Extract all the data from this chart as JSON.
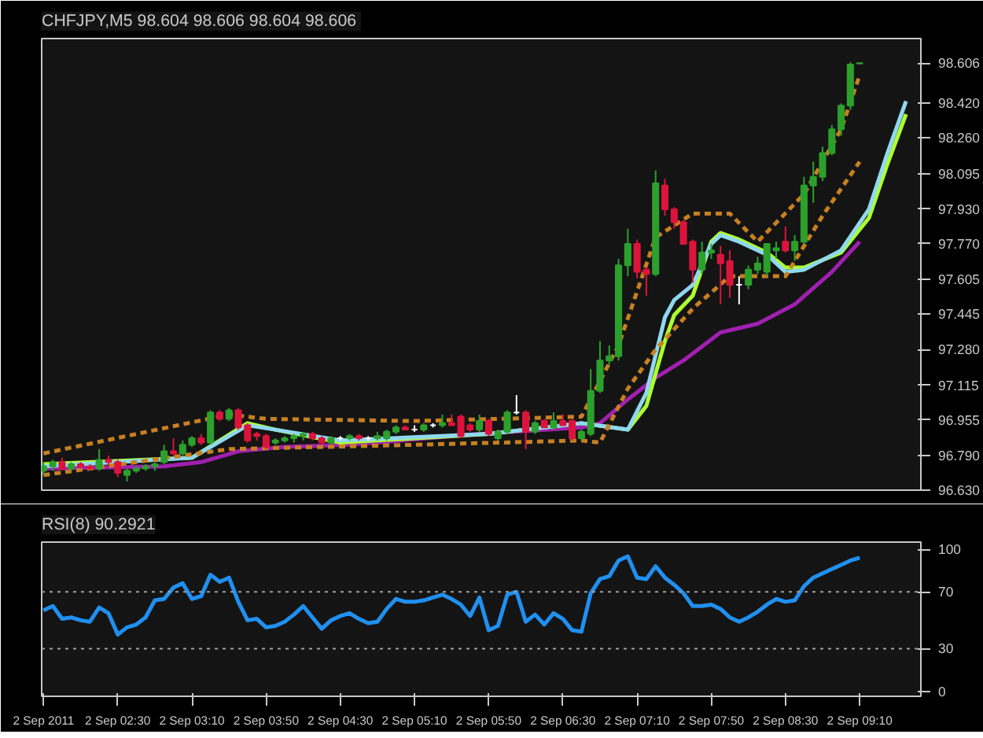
{
  "chart_data": [
    {
      "type": "candlestick",
      "title": "CHFJPY,M5  98.604 98.606 98.604 98.606",
      "x": [
        "2011-09-02T01:50",
        "2011-09-02T01:55",
        "2011-09-02T02:00",
        "2011-09-02T02:05",
        "2011-09-02T02:10",
        "2011-09-02T02:15",
        "2011-09-02T02:20",
        "2011-09-02T02:25",
        "2011-09-02T02:30",
        "2011-09-02T02:35",
        "2011-09-02T02:40",
        "2011-09-02T02:45",
        "2011-09-02T02:50",
        "2011-09-02T02:55",
        "2011-09-02T03:00",
        "2011-09-02T03:05",
        "2011-09-02T03:10",
        "2011-09-02T03:15",
        "2011-09-02T03:20",
        "2011-09-02T03:25",
        "2011-09-02T03:30",
        "2011-09-02T03:35",
        "2011-09-02T03:40",
        "2011-09-02T03:45",
        "2011-09-02T03:50",
        "2011-09-02T03:55",
        "2011-09-02T04:00",
        "2011-09-02T04:05",
        "2011-09-02T04:10",
        "2011-09-02T04:15",
        "2011-09-02T04:20",
        "2011-09-02T04:25",
        "2011-09-02T04:30",
        "2011-09-02T04:35",
        "2011-09-02T04:40",
        "2011-09-02T04:45",
        "2011-09-02T04:50",
        "2011-09-02T04:55",
        "2011-09-02T05:00",
        "2011-09-02T05:05",
        "2011-09-02T05:10",
        "2011-09-02T05:15",
        "2011-09-02T05:20",
        "2011-09-02T05:25",
        "2011-09-02T05:30",
        "2011-09-02T05:35",
        "2011-09-02T05:40",
        "2011-09-02T05:45",
        "2011-09-02T05:50",
        "2011-09-02T05:55",
        "2011-09-02T06:00",
        "2011-09-02T06:05",
        "2011-09-02T06:10",
        "2011-09-02T06:15",
        "2011-09-02T06:20",
        "2011-09-02T06:25",
        "2011-09-02T06:30",
        "2011-09-02T06:35",
        "2011-09-02T06:40",
        "2011-09-02T06:45",
        "2011-09-02T06:50",
        "2011-09-02T06:55",
        "2011-09-02T07:00",
        "2011-09-02T07:05",
        "2011-09-02T07:10",
        "2011-09-02T07:15",
        "2011-09-02T07:20",
        "2011-09-02T07:25",
        "2011-09-02T07:30",
        "2011-09-02T07:35",
        "2011-09-02T07:40",
        "2011-09-02T07:45",
        "2011-09-02T07:50",
        "2011-09-02T07:55",
        "2011-09-02T08:00",
        "2011-09-02T08:05",
        "2011-09-02T08:10",
        "2011-09-02T08:15",
        "2011-09-02T08:20",
        "2011-09-02T08:25",
        "2011-09-02T08:30",
        "2011-09-02T08:35",
        "2011-09-02T08:40",
        "2011-09-02T08:45",
        "2011-09-02T08:50",
        "2011-09-02T08:55",
        "2011-09-02T09:00",
        "2011-09-02T09:05",
        "2011-09-02T09:10"
      ],
      "ohlc": [
        [
          96.72,
          96.76,
          96.7,
          96.74
        ],
        [
          96.74,
          96.77,
          96.72,
          96.76
        ],
        [
          96.76,
          96.78,
          96.72,
          96.73
        ],
        [
          96.73,
          96.76,
          96.72,
          96.75
        ],
        [
          96.75,
          96.76,
          96.73,
          96.74
        ],
        [
          96.74,
          96.75,
          96.72,
          96.73
        ],
        [
          96.73,
          96.82,
          96.72,
          96.77
        ],
        [
          96.77,
          96.79,
          96.74,
          96.76
        ],
        [
          96.76,
          96.77,
          96.69,
          96.71
        ],
        [
          96.7,
          96.73,
          96.67,
          96.72
        ],
        [
          96.72,
          96.74,
          96.71,
          96.73
        ],
        [
          96.73,
          96.75,
          96.72,
          96.74
        ],
        [
          96.74,
          96.76,
          96.72,
          96.75
        ],
        [
          96.76,
          96.84,
          96.75,
          96.81
        ],
        [
          96.81,
          96.87,
          96.79,
          96.8
        ],
        [
          96.8,
          96.86,
          96.79,
          96.84
        ],
        [
          96.84,
          96.88,
          96.83,
          96.87
        ],
        [
          96.87,
          96.89,
          96.84,
          96.85
        ],
        [
          96.85,
          97.0,
          96.84,
          96.99
        ],
        [
          96.99,
          97.0,
          96.95,
          96.96
        ],
        [
          96.96,
          97.01,
          96.95,
          97.0
        ],
        [
          97.0,
          97.01,
          96.91,
          96.92
        ],
        [
          96.93,
          96.94,
          96.85,
          96.86
        ],
        [
          96.89,
          96.9,
          96.86,
          96.88
        ],
        [
          96.88,
          96.89,
          96.82,
          96.83
        ],
        [
          96.85,
          96.87,
          96.84,
          96.86
        ],
        [
          96.86,
          96.88,
          96.85,
          96.87
        ],
        [
          96.87,
          96.89,
          96.85,
          96.88
        ],
        [
          96.88,
          96.9,
          96.86,
          96.89
        ],
        [
          96.89,
          96.9,
          96.86,
          96.87
        ],
        [
          96.87,
          96.88,
          96.84,
          96.85
        ],
        [
          96.85,
          96.88,
          96.84,
          96.87
        ],
        [
          96.87,
          96.88,
          96.86,
          96.87
        ],
        [
          96.87,
          96.89,
          96.86,
          96.88
        ],
        [
          96.88,
          96.89,
          96.86,
          96.87
        ],
        [
          96.87,
          96.88,
          96.86,
          96.87
        ],
        [
          96.87,
          96.9,
          96.86,
          96.88
        ],
        [
          96.87,
          96.91,
          96.86,
          96.9
        ],
        [
          96.9,
          96.93,
          96.89,
          96.92
        ],
        [
          96.92,
          96.93,
          96.91,
          96.91
        ],
        [
          96.91,
          96.93,
          96.9,
          96.91
        ],
        [
          96.91,
          96.94,
          96.9,
          96.93
        ],
        [
          96.93,
          96.94,
          96.92,
          96.93
        ],
        [
          96.93,
          96.98,
          96.92,
          96.94
        ],
        [
          96.94,
          96.98,
          96.93,
          96.93
        ],
        [
          96.97,
          96.98,
          96.87,
          96.88
        ],
        [
          96.93,
          96.94,
          96.9,
          96.91
        ],
        [
          96.91,
          96.98,
          96.9,
          96.95
        ],
        [
          96.95,
          96.96,
          96.88,
          96.89
        ],
        [
          96.87,
          96.91,
          96.86,
          96.9
        ],
        [
          96.9,
          97.0,
          96.89,
          96.99
        ],
        [
          96.99,
          97.07,
          96.98,
          96.99
        ],
        [
          96.99,
          97.0,
          96.82,
          96.9
        ],
        [
          96.9,
          96.95,
          96.89,
          96.94
        ],
        [
          96.95,
          96.96,
          96.92,
          96.92
        ],
        [
          96.92,
          96.99,
          96.91,
          96.95
        ],
        [
          96.95,
          96.98,
          96.93,
          96.93
        ],
        [
          96.95,
          96.96,
          96.86,
          96.87
        ],
        [
          96.87,
          96.91,
          96.86,
          96.9
        ],
        [
          96.89,
          97.19,
          96.88,
          97.09
        ],
        [
          97.09,
          97.32,
          97.08,
          97.23
        ],
        [
          97.23,
          97.3,
          97.21,
          97.25
        ],
        [
          97.25,
          97.7,
          97.23,
          97.67
        ],
        [
          97.67,
          97.84,
          97.62,
          97.77
        ],
        [
          97.77,
          97.79,
          97.61,
          97.64
        ],
        [
          97.65,
          97.66,
          97.53,
          97.63
        ],
        [
          97.63,
          98.11,
          97.62,
          98.05
        ],
        [
          98.04,
          98.07,
          97.9,
          97.93
        ],
        [
          97.93,
          97.94,
          97.84,
          97.87
        ],
        [
          97.87,
          97.88,
          97.77,
          97.77
        ],
        [
          97.78,
          97.79,
          97.59,
          97.65
        ],
        [
          97.65,
          97.78,
          97.63,
          97.73
        ],
        [
          97.73,
          97.77,
          97.7,
          97.74
        ],
        [
          97.72,
          97.76,
          97.49,
          97.68
        ],
        [
          97.69,
          97.74,
          97.52,
          97.58
        ],
        [
          97.58,
          97.62,
          97.49,
          97.58
        ],
        [
          97.58,
          97.67,
          97.56,
          97.65
        ],
        [
          97.65,
          97.71,
          97.63,
          97.68
        ],
        [
          97.64,
          97.77,
          97.62,
          97.77
        ],
        [
          97.74,
          97.78,
          97.7,
          97.75
        ],
        [
          97.78,
          97.85,
          97.73,
          97.74
        ],
        [
          97.74,
          97.81,
          97.69,
          97.78
        ],
        [
          97.78,
          98.08,
          97.77,
          98.04
        ],
        [
          98.04,
          98.15,
          97.96,
          98.08
        ],
        [
          98.08,
          98.22,
          98.06,
          98.19
        ],
        [
          98.19,
          98.32,
          98.18,
          98.3
        ],
        [
          98.3,
          98.42,
          98.27,
          98.41
        ],
        [
          98.41,
          98.61,
          98.39,
          98.6
        ],
        [
          98.604,
          98.606,
          98.604,
          98.606
        ]
      ],
      "colors": [
        "#2ca02c",
        "#2ca02c",
        "#dc143c",
        "#2ca02c",
        "#dc143c",
        "#dc143c",
        "#2ca02c",
        "#dc143c",
        "#dc143c",
        "#2ca02c",
        "#2ca02c",
        "#2ca02c",
        "#2ca02c",
        "#2ca02c",
        "#dc143c",
        "#2ca02c",
        "#2ca02c",
        "#dc143c",
        "#2ca02c",
        "#dc143c",
        "#2ca02c",
        "#dc143c",
        "#dc143c",
        "#dc143c",
        "#dc143c",
        "#2ca02c",
        "#2ca02c",
        "#2ca02c",
        "#2ca02c",
        "#dc143c",
        "#dc143c",
        "#2ca02c",
        "#ffffff",
        "#2ca02c",
        "#dc143c",
        "#ffffff",
        "#2ca02c",
        "#2ca02c",
        "#2ca02c",
        "#dc143c",
        "#ffffff",
        "#2ca02c",
        "#ffffff",
        "#2ca02c",
        "#dc143c",
        "#dc143c",
        "#dc143c",
        "#2ca02c",
        "#dc143c",
        "#2ca02c",
        "#2ca02c",
        "#ffffff",
        "#dc143c",
        "#2ca02c",
        "#dc143c",
        "#2ca02c",
        "#dc143c",
        "#dc143c",
        "#2ca02c",
        "#2ca02c",
        "#2ca02c",
        "#2ca02c",
        "#2ca02c",
        "#2ca02c",
        "#dc143c",
        "#dc143c",
        "#2ca02c",
        "#dc143c",
        "#dc143c",
        "#dc143c",
        "#dc143c",
        "#2ca02c",
        "#2ca02c",
        "#dc143c",
        "#dc143c",
        "#ffffff",
        "#2ca02c",
        "#2ca02c",
        "#2ca02c",
        "#2ca02c",
        "#dc143c",
        "#2ca02c",
        "#2ca02c",
        "#2ca02c",
        "#2ca02c",
        "#2ca02c",
        "#2ca02c",
        "#2ca02c",
        "#2ca02c"
      ],
      "series": [
        {
          "type": "line",
          "color": "#a020b0",
          "line_style": "solid",
          "x": [
            "2011-09-02T01:50",
            "2011-09-02T02:55",
            "2011-09-02T03:15",
            "2011-09-02T03:35",
            "2011-09-02T04:00",
            "2011-09-02T04:35",
            "2011-09-02T05:45",
            "2011-09-02T06:40",
            "2011-09-02T06:50",
            "2011-09-02T07:05",
            "2011-09-02T07:20",
            "2011-09-02T07:35",
            "2011-09-02T07:55",
            "2011-09-02T08:15",
            "2011-09-02T08:35",
            "2011-09-02T08:55",
            "2011-09-02T09:10"
          ],
          "values": [
            96.73,
            96.74,
            96.76,
            96.81,
            96.83,
            96.84,
            96.89,
            96.92,
            96.94,
            97.05,
            97.15,
            97.23,
            97.36,
            97.4,
            97.49,
            97.64,
            97.78
          ]
        },
        {
          "type": "line",
          "color": "#adff2f",
          "line_style": "solid",
          "x": [
            "2011-09-02T01:50",
            "2011-09-02T03:10",
            "2011-09-02T03:40",
            "2011-09-02T03:55",
            "2011-09-02T04:30",
            "2011-09-02T05:50",
            "2011-09-02T06:40",
            "2011-09-02T07:05",
            "2011-09-02T07:15",
            "2011-09-02T07:25",
            "2011-09-02T07:30",
            "2011-09-02T07:40",
            "2011-09-02T07:50",
            "2011-09-02T07:55",
            "2011-09-02T08:05",
            "2011-09-02T08:20",
            "2011-09-02T08:30",
            "2011-09-02T08:40",
            "2011-09-02T09:00",
            "2011-09-02T09:15",
            "2011-09-02T09:25",
            "2011-09-02T09:35"
          ],
          "values": [
            96.75,
            96.78,
            96.94,
            96.91,
            96.85,
            96.89,
            96.94,
            96.91,
            97.02,
            97.32,
            97.44,
            97.53,
            97.78,
            97.82,
            97.79,
            97.73,
            97.66,
            97.66,
            97.73,
            97.89,
            98.14,
            98.37
          ]
        },
        {
          "type": "line",
          "color": "#8fd8f0",
          "line_style": "solid",
          "x": [
            "2011-09-02T01:50",
            "2011-09-02T03:10",
            "2011-09-02T03:40",
            "2011-09-02T03:55",
            "2011-09-02T04:30",
            "2011-09-02T05:50",
            "2011-09-02T06:40",
            "2011-09-02T07:05",
            "2011-09-02T07:15",
            "2011-09-02T07:25",
            "2011-09-02T07:30",
            "2011-09-02T07:40",
            "2011-09-02T07:50",
            "2011-09-02T07:55",
            "2011-09-02T08:05",
            "2011-09-02T08:20",
            "2011-09-02T08:30",
            "2011-09-02T08:40",
            "2011-09-02T09:00",
            "2011-09-02T09:15",
            "2011-09-02T09:25",
            "2011-09-02T09:35"
          ],
          "values": [
            96.74,
            96.78,
            96.93,
            96.91,
            96.86,
            96.89,
            96.94,
            96.91,
            97.08,
            97.43,
            97.51,
            97.58,
            97.77,
            97.81,
            97.78,
            97.72,
            97.64,
            97.65,
            97.74,
            97.93,
            98.19,
            98.43
          ]
        },
        {
          "type": "line",
          "color": "#c88020",
          "line_style": "dashed",
          "x": [
            "2011-09-02T01:50",
            "2011-09-02T03:30",
            "2011-09-02T03:50",
            "2011-09-02T05:10",
            "2011-09-02T06:40",
            "2011-09-02T07:00",
            "2011-09-02T07:20",
            "2011-09-02T07:40",
            "2011-09-02T08:00",
            "2011-09-02T08:15",
            "2011-09-02T08:40",
            "2011-09-02T09:00",
            "2011-09-02T09:10"
          ],
          "values": [
            96.8,
            96.98,
            96.96,
            96.95,
            96.97,
            97.3,
            97.8,
            97.91,
            97.91,
            97.78,
            98.0,
            98.3,
            98.55
          ]
        },
        {
          "type": "line",
          "color": "#c88020",
          "line_style": "dashed",
          "x": [
            "2011-09-02T01:50",
            "2011-09-02T03:30",
            "2011-09-02T05:10",
            "2011-09-02T06:40",
            "2011-09-02T06:50",
            "2011-09-02T07:05",
            "2011-09-02T07:20",
            "2011-09-02T07:40",
            "2011-09-02T08:00",
            "2011-09-02T08:30",
            "2011-09-02T08:50",
            "2011-09-02T09:10"
          ],
          "values": [
            96.7,
            96.82,
            96.84,
            96.86,
            96.85,
            97.1,
            97.28,
            97.47,
            97.62,
            97.62,
            97.9,
            98.15
          ]
        }
      ],
      "xlim": [
        "2011-09-02T01:49",
        "2011-09-02T09:43"
      ],
      "ylim": [
        96.63,
        98.72
      ],
      "yticks": [
        {
          "value": 96.63,
          "label": "96.630"
        },
        {
          "value": 96.79,
          "label": "96.790"
        },
        96.955,
        97.115,
        {
          "value": 97.28,
          "label": "97.280"
        },
        97.445,
        97.605,
        {
          "value": 97.77,
          "label": "97.770"
        },
        {
          "value": 97.93,
          "label": "97.930"
        },
        98.095,
        {
          "value": 98.26,
          "label": "98.260"
        },
        {
          "value": 98.42,
          "label": "98.420"
        },
        98.606
      ],
      "tick_labels": "y",
      "grid": false
    },
    {
      "type": "line",
      "title": "RSI(8) 90.2921",
      "color": "#2090f0",
      "x": [
        "2011-09-02T01:50",
        "2011-09-02T01:55",
        "2011-09-02T02:00",
        "2011-09-02T02:05",
        "2011-09-02T02:10",
        "2011-09-02T02:15",
        "2011-09-02T02:20",
        "2011-09-02T02:25",
        "2011-09-02T02:30",
        "2011-09-02T02:35",
        "2011-09-02T02:40",
        "2011-09-02T02:45",
        "2011-09-02T02:50",
        "2011-09-02T02:55",
        "2011-09-02T03:00",
        "2011-09-02T03:05",
        "2011-09-02T03:10",
        "2011-09-02T03:15",
        "2011-09-02T03:20",
        "2011-09-02T03:25",
        "2011-09-02T03:30",
        "2011-09-02T03:35",
        "2011-09-02T03:40",
        "2011-09-02T03:45",
        "2011-09-02T03:50",
        "2011-09-02T03:55",
        "2011-09-02T04:00",
        "2011-09-02T04:05",
        "2011-09-02T04:10",
        "2011-09-02T04:15",
        "2011-09-02T04:20",
        "2011-09-02T04:25",
        "2011-09-02T04:30",
        "2011-09-02T04:35",
        "2011-09-02T04:40",
        "2011-09-02T04:45",
        "2011-09-02T04:50",
        "2011-09-02T04:55",
        "2011-09-02T05:00",
        "2011-09-02T05:05",
        "2011-09-02T05:10",
        "2011-09-02T05:15",
        "2011-09-02T05:20",
        "2011-09-02T05:25",
        "2011-09-02T05:30",
        "2011-09-02T05:35",
        "2011-09-02T05:40",
        "2011-09-02T05:45",
        "2011-09-02T05:50",
        "2011-09-02T05:55",
        "2011-09-02T06:00",
        "2011-09-02T06:05",
        "2011-09-02T06:10",
        "2011-09-02T06:15",
        "2011-09-02T06:20",
        "2011-09-02T06:25",
        "2011-09-02T06:30",
        "2011-09-02T06:35",
        "2011-09-02T06:40",
        "2011-09-02T06:45",
        "2011-09-02T06:50",
        "2011-09-02T06:55",
        "2011-09-02T07:00",
        "2011-09-02T07:05",
        "2011-09-02T07:10",
        "2011-09-02T07:15",
        "2011-09-02T07:20",
        "2011-09-02T07:25",
        "2011-09-02T07:30",
        "2011-09-02T07:35",
        "2011-09-02T07:40",
        "2011-09-02T07:45",
        "2011-09-02T07:50",
        "2011-09-02T07:55",
        "2011-09-02T08:00",
        "2011-09-02T08:05",
        "2011-09-02T08:10",
        "2011-09-02T08:15",
        "2011-09-02T08:20",
        "2011-09-02T08:25",
        "2011-09-02T08:30",
        "2011-09-02T08:35",
        "2011-09-02T08:40",
        "2011-09-02T08:45",
        "2011-09-02T08:50",
        "2011-09-02T08:55",
        "2011-09-02T09:00",
        "2011-09-02T09:05",
        "2011-09-02T09:10"
      ],
      "values": [
        57,
        60,
        51,
        52,
        50,
        49,
        59,
        55,
        40,
        45,
        47,
        52,
        64,
        65,
        73,
        76,
        65,
        67,
        82,
        77,
        80,
        63,
        50,
        51,
        45,
        46,
        49,
        54,
        60,
        52,
        44,
        50,
        53,
        55,
        51,
        48,
        49,
        58,
        65,
        63,
        63,
        64,
        66,
        68,
        65,
        61,
        53,
        66,
        43,
        46,
        68,
        70,
        49,
        54,
        47,
        55,
        51,
        43,
        42,
        69,
        79,
        81,
        92,
        95,
        80,
        79,
        88,
        80,
        75,
        69,
        60,
        60,
        61,
        58,
        52,
        49,
        52,
        56,
        61,
        65,
        63,
        64,
        74,
        80,
        83,
        86,
        89,
        92,
        94
      ],
      "xlim": [
        "2011-09-02T01:49",
        "2011-09-02T09:43"
      ],
      "ylim": [
        -3.5,
        105
      ],
      "xticks": [
        {
          "value": "2011-09-02T01:50",
          "label": "2 Sep 2011"
        },
        {
          "value": "2011-09-02T02:30",
          "label": "2 Sep 02:30"
        },
        {
          "value": "2011-09-02T03:10",
          "label": "2 Sep 03:10"
        },
        {
          "value": "2011-09-02T03:50",
          "label": "2 Sep 03:50"
        },
        {
          "value": "2011-09-02T04:30",
          "label": "2 Sep 04:30"
        },
        {
          "value": "2011-09-02T05:10",
          "label": "2 Sep 05:10"
        },
        {
          "value": "2011-09-02T05:50",
          "label": "2 Sep 05:50"
        },
        {
          "value": "2011-09-02T06:30",
          "label": "2 Sep 06:30"
        },
        {
          "value": "2011-09-02T07:10",
          "label": "2 Sep 07:10"
        },
        {
          "value": "2011-09-02T07:50",
          "label": "2 Sep 07:50"
        },
        {
          "value": "2011-09-02T08:30",
          "label": "2 Sep 08:30"
        },
        {
          "value": "2011-09-02T09:10",
          "label": "2 Sep 09:10"
        }
      ],
      "yticks": [
        0,
        30,
        70,
        100
      ],
      "ref_lines": [
        {
          "axis": "y",
          "value": 70,
          "color": "#a0a0a0",
          "line_style": "dotted"
        },
        {
          "axis": "y",
          "value": 30,
          "color": "#a0a0a0",
          "line_style": "dotted"
        }
      ],
      "grid": false
    }
  ]
}
